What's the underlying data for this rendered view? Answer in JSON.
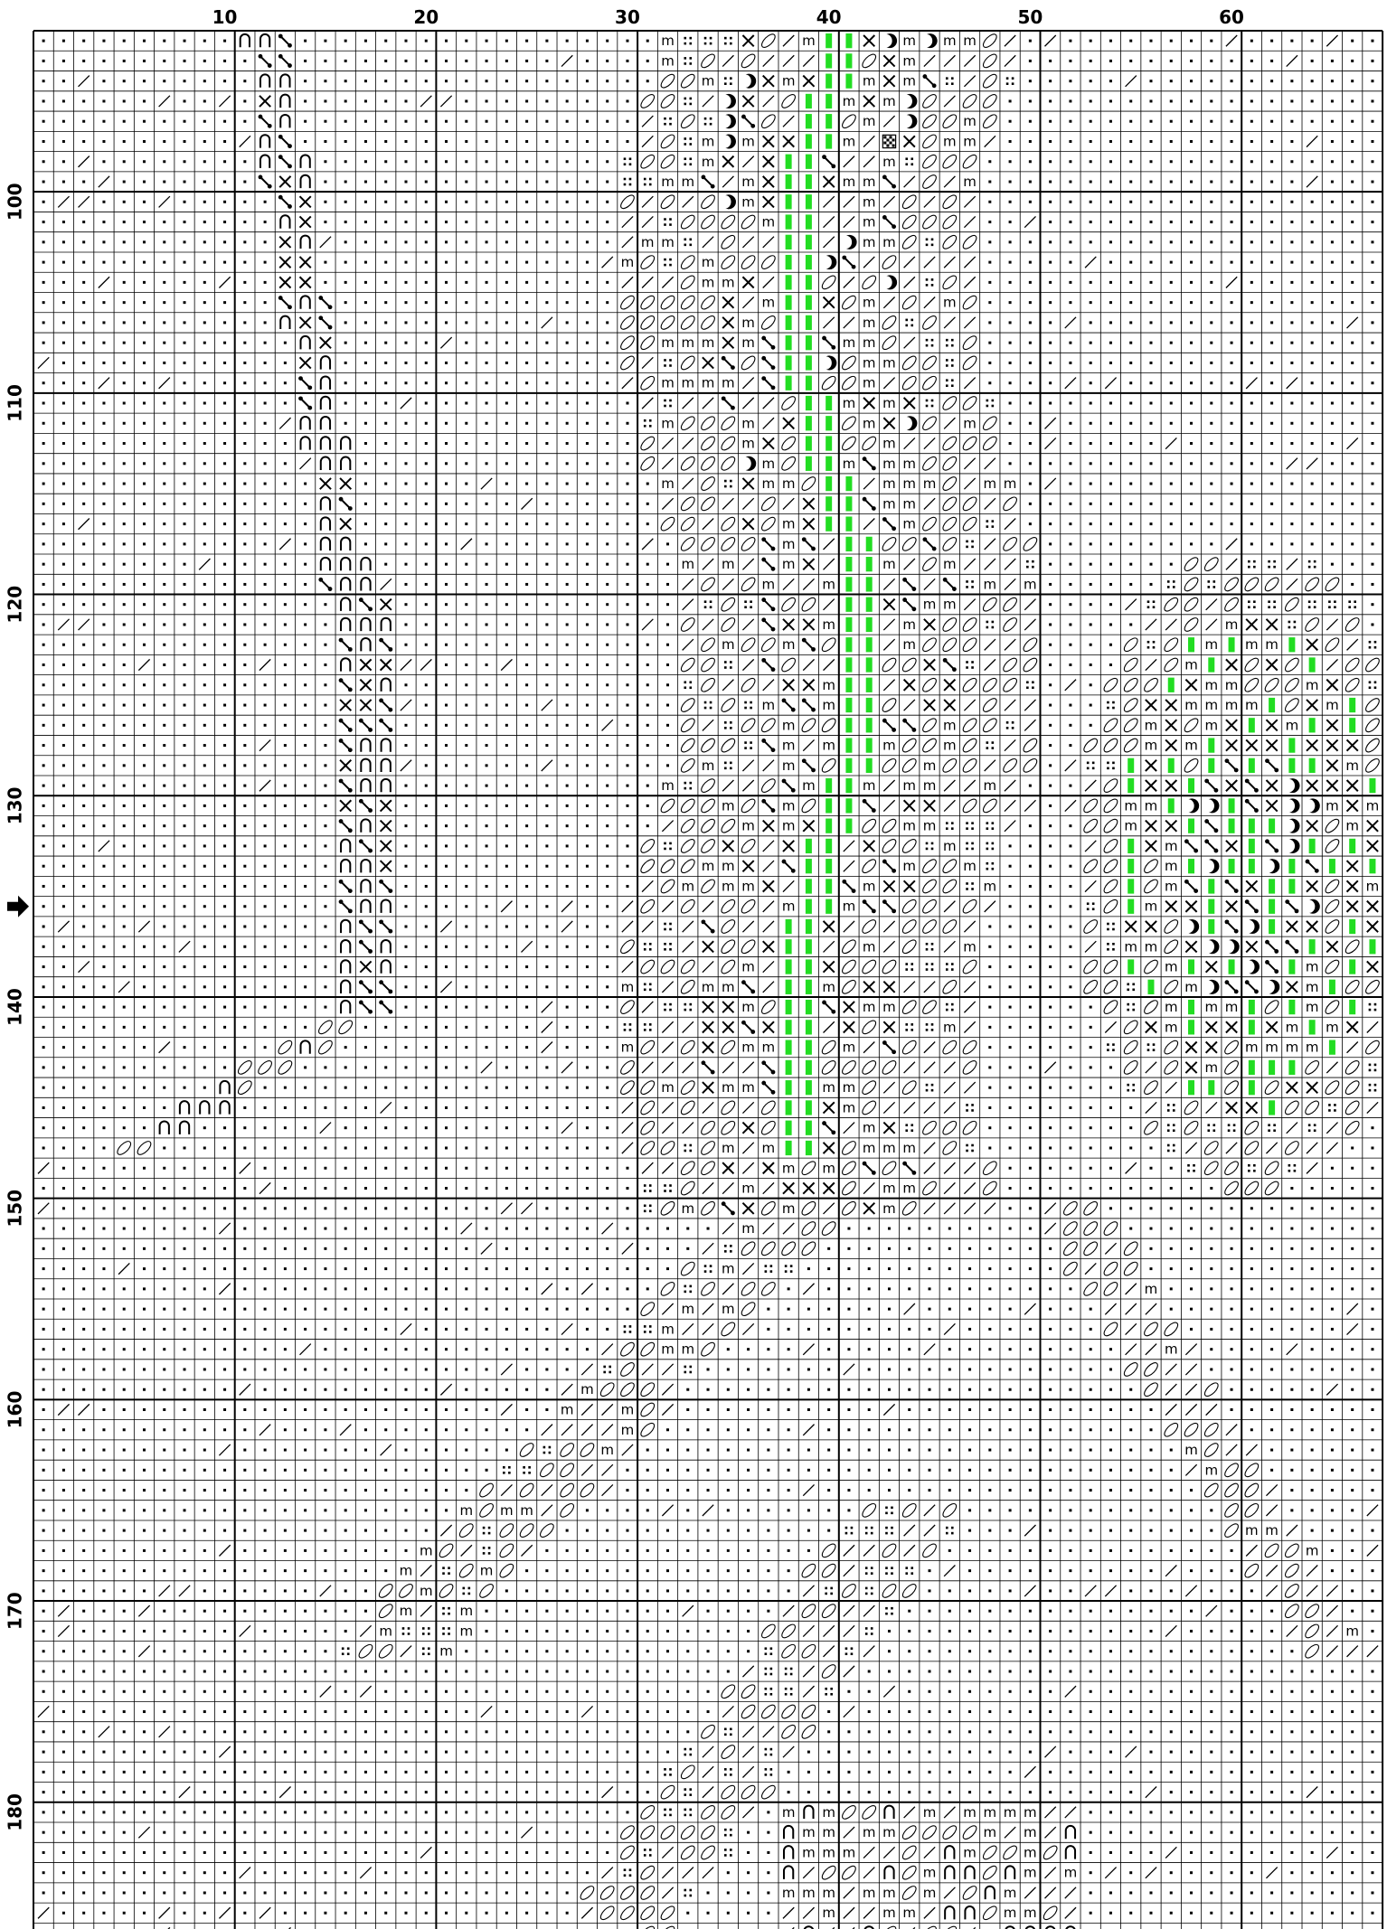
{
  "chart": {
    "columns": 67,
    "rows": 95,
    "first_row_number": 92,
    "column_labels": [
      10,
      20,
      30,
      40,
      50,
      60
    ],
    "row_labels": [
      100,
      110,
      120,
      130,
      140,
      150,
      160,
      170,
      180
    ],
    "center_row_marker": 135,
    "background_symbol": "dot"
  },
  "legend_symbols": {
    "dot": "·",
    "slash": "/",
    "oval": "◯ (diagonal oval)",
    "dots4": "::",
    "m": "m",
    "x": "×",
    "arch": "∩",
    "diag": "diagonal dumbbell",
    "crescent": "☽",
    "checker": "checkered square",
    "green": "green bar",
    "arrow": "row marker arrow"
  },
  "colors": {
    "grid": "#000000",
    "green": "#22dd22",
    "paper": "#ffffff"
  }
}
